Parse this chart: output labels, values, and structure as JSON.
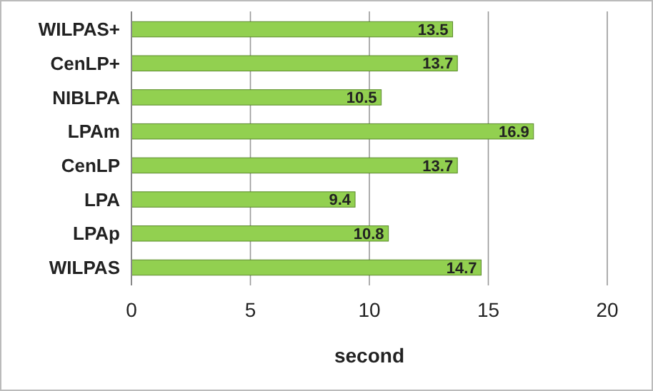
{
  "chart_data": {
    "type": "bar",
    "orientation": "horizontal",
    "xlabel": "second",
    "categories": [
      "WILPAS+",
      "CenLP+",
      "NIBLPA",
      "LPAm",
      "CenLP",
      "LPA",
      "LPAp",
      "WILPAS"
    ],
    "values": [
      13.5,
      13.7,
      10.5,
      16.9,
      13.7,
      9.4,
      10.8,
      14.7
    ],
    "color": "#92d050",
    "xlim": [
      0,
      20
    ],
    "xticks": [
      0,
      5,
      10,
      15,
      20
    ],
    "grid": "x",
    "data_labels": true
  }
}
